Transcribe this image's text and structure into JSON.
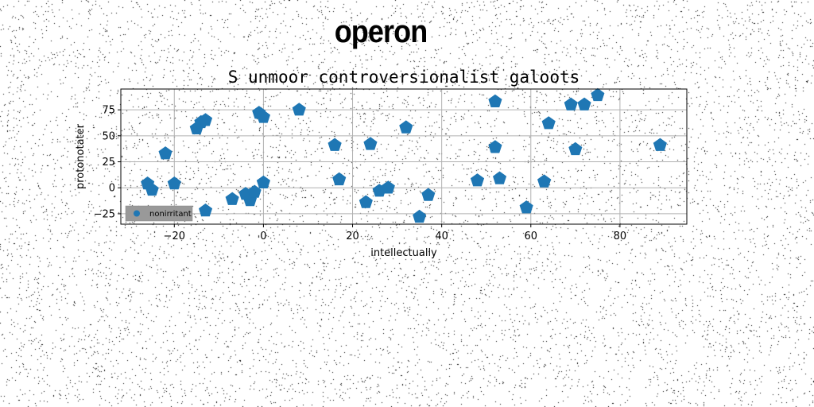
{
  "page": {
    "title": "operon"
  },
  "chart_data": {
    "type": "scatter",
    "title": "S unmoor controversionalist galoots",
    "xlabel": "intellectually",
    "ylabel": "protonotater",
    "xlim": [
      -32,
      95
    ],
    "ylim": [
      -35,
      95
    ],
    "xticks": [
      -20,
      0,
      20,
      40,
      60,
      80
    ],
    "yticks": [
      -25,
      0,
      25,
      50,
      75
    ],
    "grid": true,
    "legend_position": "lower-left",
    "marker": "pentagon",
    "series": [
      {
        "name": "nonirritant",
        "color": "#1f77b4",
        "x": [
          -26,
          -25,
          -22,
          -20,
          -15,
          -14,
          -13,
          -13,
          -7,
          -4,
          -3,
          -2,
          -1,
          0,
          0,
          8,
          16,
          17,
          23,
          24,
          26,
          28,
          32,
          35,
          37,
          48,
          52,
          52,
          53,
          59,
          63,
          64,
          69,
          70,
          72,
          75,
          89
        ],
        "y": [
          4,
          -2,
          33,
          4,
          57,
          63,
          65,
          -22,
          -11,
          -6,
          -12,
          -4,
          72,
          68,
          5,
          75,
          41,
          8,
          -14,
          42,
          -3,
          0,
          58,
          -28,
          -7,
          7,
          83,
          39,
          9,
          -19,
          6,
          62,
          80,
          37,
          80,
          89,
          41
        ]
      }
    ]
  }
}
